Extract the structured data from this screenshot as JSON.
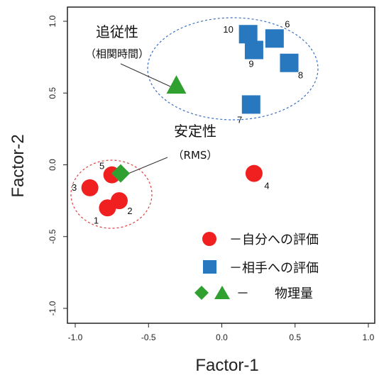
{
  "chart_data": {
    "type": "scatter",
    "xlabel": "Factor-1",
    "ylabel": "Factor-2",
    "xlim": [
      -1.0,
      1.0
    ],
    "ylim": [
      -1.0,
      1.0
    ],
    "x_ticks": [
      -1.0,
      -0.5,
      0.0,
      0.5,
      1.0
    ],
    "y_ticks": [
      -1.0,
      -0.5,
      0.0,
      0.5,
      1.0
    ],
    "x_tick_labels": [
      "-1.0",
      "-0.5",
      "0.0",
      "0.5",
      "1.0"
    ],
    "y_tick_labels": [
      "-1.0",
      "-0.5",
      "0.0",
      "0.5",
      "1.0"
    ],
    "grid": false,
    "series": [
      {
        "name": "－自分への評価",
        "marker": "circle",
        "color": "#f02020",
        "points": [
          {
            "label": "1",
            "x": -0.78,
            "y": -0.3
          },
          {
            "label": "2",
            "x": -0.7,
            "y": -0.25
          },
          {
            "label": "3",
            "x": -0.9,
            "y": -0.16
          },
          {
            "label": "4",
            "x": 0.22,
            "y": -0.06
          },
          {
            "label": "5",
            "x": -0.75,
            "y": -0.07
          }
        ]
      },
      {
        "name": "－相手への評価",
        "marker": "square",
        "color": "#2878c0",
        "points": [
          {
            "label": "6",
            "x": 0.36,
            "y": 0.88
          },
          {
            "label": "7",
            "x": 0.2,
            "y": 0.42
          },
          {
            "label": "8",
            "x": 0.46,
            "y": 0.71
          },
          {
            "label": "9",
            "x": 0.22,
            "y": 0.8
          },
          {
            "label": "10",
            "x": 0.18,
            "y": 0.91
          }
        ]
      },
      {
        "name": "－　　物理量",
        "marker": "diamond/triangle",
        "color": "#30a030",
        "points": [
          {
            "label": "",
            "x": -0.69,
            "y": -0.06,
            "marker": "diamond"
          },
          {
            "label": "",
            "x": -0.31,
            "y": 0.55,
            "marker": "triangle"
          }
        ]
      }
    ],
    "annotations": [
      {
        "title": "追従性",
        "subtitle": "（相関時間）"
      },
      {
        "title": "安定性",
        "subtitle": "（RMS）"
      }
    ],
    "legend_placement": "bottom-right"
  }
}
